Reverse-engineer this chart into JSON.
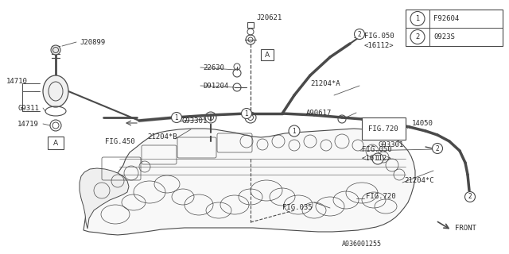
{
  "bg_color": "#ffffff",
  "line_color": "#4a4a4a",
  "text_color": "#2a2a2a",
  "legend": [
    {
      "num": "1",
      "code": "F92604"
    },
    {
      "num": "2",
      "code": "0923S"
    }
  ],
  "fig_code": "A036001255"
}
